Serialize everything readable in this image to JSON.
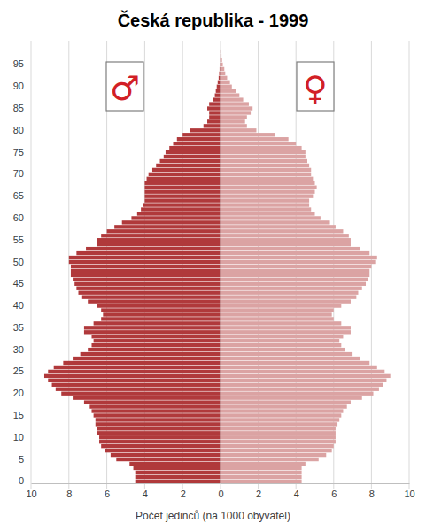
{
  "chart_data": [
    {
      "type": "bar",
      "orientation": "horizontal",
      "title": "Česká republika - 1999",
      "xlabel": "Počet jedinců (na 1000 obyvatel)",
      "categories": [
        "0",
        null,
        null,
        null,
        null,
        "5",
        null,
        null,
        null,
        null,
        "10",
        null,
        null,
        null,
        null,
        "15",
        null,
        null,
        null,
        null,
        "20",
        null,
        null,
        null,
        null,
        "25",
        null,
        null,
        null,
        null,
        "30",
        null,
        null,
        null,
        null,
        "35",
        null,
        null,
        null,
        null,
        "40",
        null,
        null,
        null,
        null,
        "45",
        null,
        null,
        null,
        null,
        "50",
        null,
        null,
        null,
        null,
        "55",
        null,
        null,
        null,
        null,
        "60",
        null,
        null,
        null,
        null,
        "65",
        null,
        null,
        null,
        null,
        "70",
        null,
        null,
        null,
        null,
        "75",
        null,
        null,
        null,
        null,
        "80",
        null,
        null,
        null,
        null,
        "85",
        null,
        null,
        null,
        null,
        "90",
        null,
        null,
        null,
        null,
        "95",
        null,
        null,
        null,
        null,
        null
      ],
      "series": [
        {
          "name": "♂",
          "color": "#b0393b",
          "values": [
            4.5,
            4.5,
            4.5,
            4.6,
            4.8,
            5.5,
            5.8,
            6.1,
            6.3,
            6.4,
            6.4,
            6.5,
            6.5,
            6.6,
            6.6,
            6.7,
            6.8,
            6.9,
            7.2,
            7.8,
            8.4,
            8.7,
            8.9,
            9.1,
            9.3,
            9.1,
            8.8,
            8.3,
            7.8,
            7.4,
            7.0,
            6.8,
            6.7,
            6.8,
            7.2,
            7.2,
            6.7,
            6.3,
            6.2,
            6.3,
            6.5,
            7.0,
            7.3,
            7.5,
            7.6,
            7.7,
            7.8,
            7.9,
            7.9,
            7.9,
            8.0,
            8.0,
            7.6,
            7.1,
            6.5,
            6.5,
            6.3,
            6.0,
            5.6,
            5.2,
            4.7,
            4.4,
            4.2,
            4.1,
            4.0,
            4.0,
            4.0,
            4.0,
            4.0,
            3.9,
            3.8,
            3.6,
            3.4,
            3.2,
            3.0,
            2.9,
            2.7,
            2.5,
            2.3,
            2.0,
            1.6,
            0.9,
            0.7,
            0.6,
            0.6,
            0.7,
            0.6,
            0.4,
            0.3,
            0.25,
            0.2,
            0.15,
            0.1,
            0.07,
            0.05,
            0.03,
            0.02,
            0.01,
            0.01,
            0,
            0
          ]
        }
      ],
      "xlim": [
        10,
        0
      ],
      "xticks": [
        10,
        8,
        6,
        4,
        2
      ],
      "grid": true,
      "legend": "top-left"
    },
    {
      "type": "bar",
      "orientation": "horizontal",
      "tick_labels": "x",
      "categories": [
        "0",
        null,
        null,
        null,
        null,
        "5",
        null,
        null,
        null,
        null,
        "10",
        null,
        null,
        null,
        null,
        "15",
        null,
        null,
        null,
        null,
        "20",
        null,
        null,
        null,
        null,
        "25",
        null,
        null,
        null,
        null,
        "30",
        null,
        null,
        null,
        null,
        "35",
        null,
        null,
        null,
        null,
        "40",
        null,
        null,
        null,
        null,
        "45",
        null,
        null,
        null,
        null,
        "50",
        null,
        null,
        null,
        null,
        "55",
        null,
        null,
        null,
        null,
        "60",
        null,
        null,
        null,
        null,
        "65",
        null,
        null,
        null,
        null,
        "70",
        null,
        null,
        null,
        null,
        "75",
        null,
        null,
        null,
        null,
        "80",
        null,
        null,
        null,
        null,
        "85",
        null,
        null,
        null,
        null,
        "90",
        null,
        null,
        null,
        null,
        "95",
        null,
        null,
        null,
        null,
        null
      ],
      "series": [
        {
          "name": "♀",
          "color": "#dba3a3",
          "values": [
            4.3,
            4.3,
            4.3,
            4.3,
            4.5,
            5.2,
            5.6,
            5.9,
            6.0,
            6.1,
            6.1,
            6.1,
            6.1,
            6.2,
            6.3,
            6.4,
            6.5,
            6.7,
            6.9,
            7.5,
            8.1,
            8.4,
            8.6,
            8.8,
            9.0,
            8.7,
            8.3,
            7.9,
            7.4,
            7.0,
            6.6,
            6.4,
            6.3,
            6.5,
            6.9,
            6.9,
            6.4,
            6.0,
            5.9,
            6.0,
            6.4,
            6.9,
            7.2,
            7.3,
            7.5,
            7.7,
            7.8,
            7.9,
            7.9,
            8.0,
            8.2,
            8.3,
            7.9,
            7.4,
            6.9,
            6.9,
            6.8,
            6.5,
            6.1,
            5.8,
            5.3,
            5.0,
            4.8,
            4.7,
            4.7,
            4.9,
            5.0,
            5.1,
            5.0,
            4.9,
            4.8,
            4.8,
            4.7,
            4.6,
            4.5,
            4.5,
            4.3,
            4.0,
            3.6,
            2.9,
            1.9,
            1.4,
            1.3,
            1.4,
            1.6,
            1.7,
            1.5,
            1.2,
            1.0,
            0.8,
            0.6,
            0.5,
            0.35,
            0.25,
            0.2,
            0.12,
            0.08,
            0.05,
            0.03,
            0.02,
            0.01
          ]
        }
      ],
      "xlim": [
        0,
        10
      ],
      "xticks": [
        0,
        2,
        4,
        6,
        8,
        10
      ],
      "grid": true,
      "legend": "top-right"
    }
  ]
}
